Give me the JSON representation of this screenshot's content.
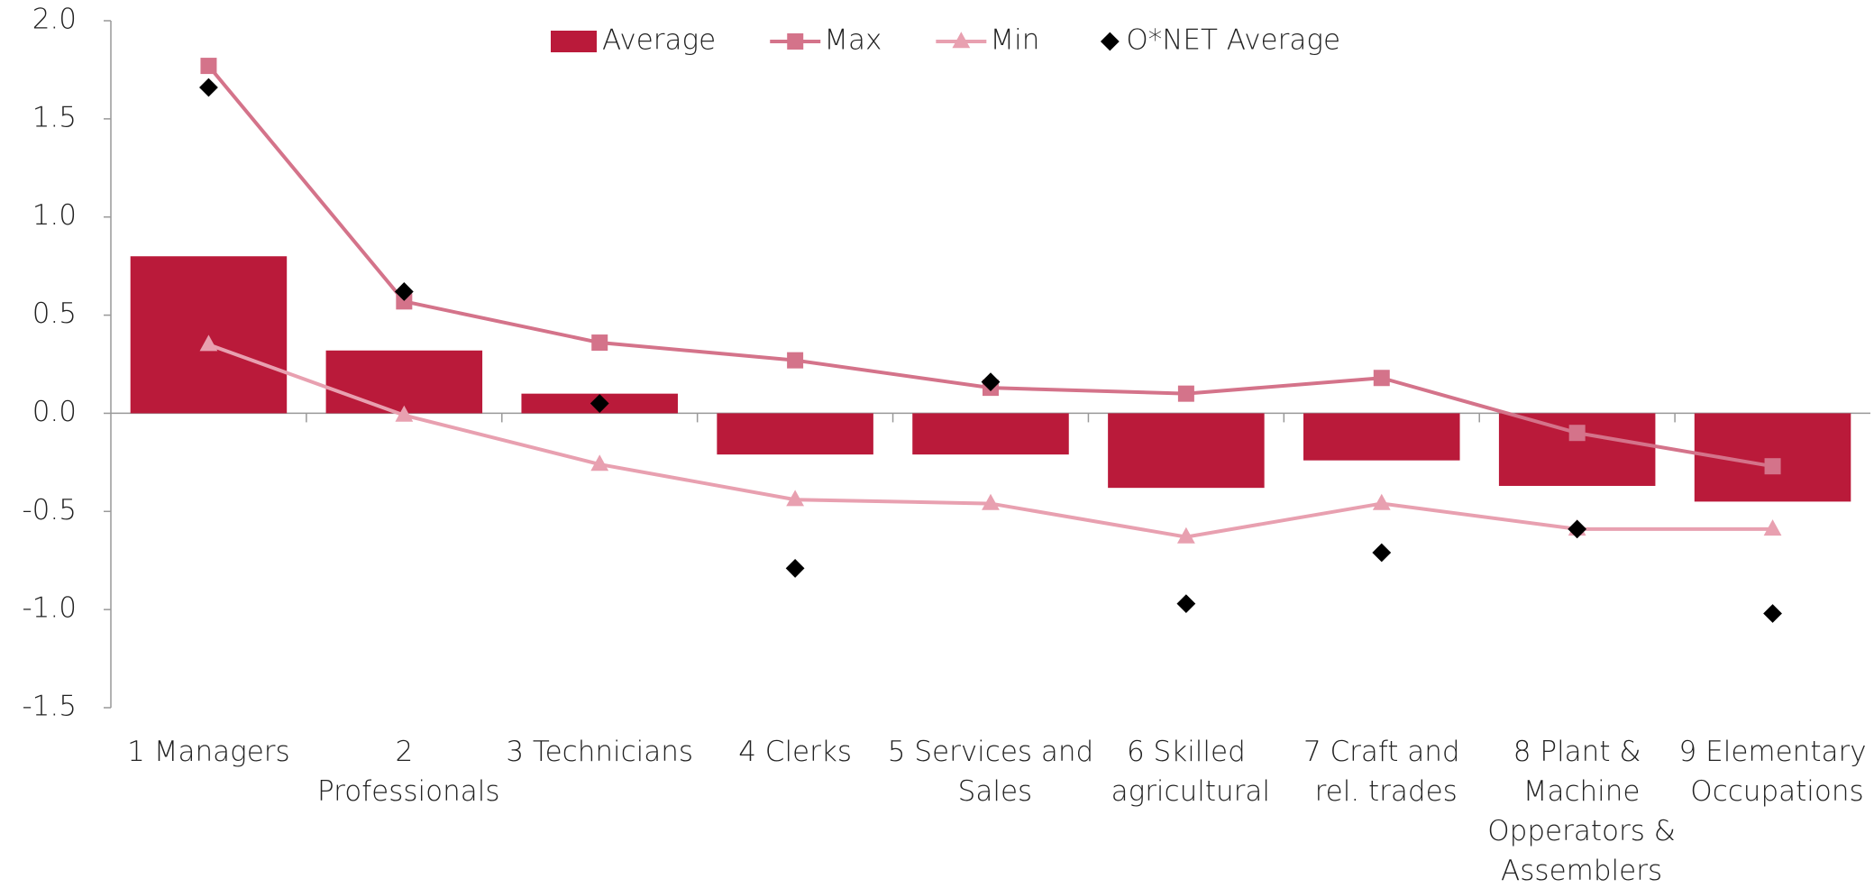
{
  "chart_data": {
    "type": "combo",
    "categories": [
      "1 Managers",
      "2 Professionals",
      "3 Technicians",
      "4 Clerks",
      "5 Services and Sales",
      "6 Skilled agricultural",
      "7 Craft and rel. trades",
      "8 Plant & Machine Opperators & Assemblers",
      "9 Elementary Occupations"
    ],
    "series": [
      {
        "name": "Average",
        "type": "bar",
        "color": "#ba1a3a",
        "values": [
          0.8,
          0.32,
          0.1,
          -0.21,
          -0.21,
          -0.38,
          -0.24,
          -0.37,
          -0.45
        ]
      },
      {
        "name": "Max",
        "type": "line",
        "marker": "square",
        "color": "#d4738a",
        "values": [
          1.77,
          0.57,
          0.36,
          0.27,
          0.13,
          0.1,
          0.18,
          -0.1,
          -0.27
        ]
      },
      {
        "name": "Min",
        "type": "line",
        "marker": "triangle",
        "color": "#e8a0b0",
        "values": [
          0.35,
          -0.01,
          -0.26,
          -0.44,
          -0.46,
          -0.63,
          -0.46,
          -0.59,
          -0.59
        ]
      },
      {
        "name": "O*NET Average",
        "type": "scatter",
        "marker": "diamond",
        "color": "#000000",
        "values": [
          1.66,
          0.62,
          0.05,
          -0.79,
          0.16,
          -0.97,
          -0.71,
          -0.59,
          -1.02
        ]
      }
    ],
    "ylim": [
      -1.5,
      2.0
    ],
    "yticks": [
      {
        "value": -1.5,
        "label": "-1.5"
      },
      {
        "value": -1.0,
        "label": "-1.0"
      },
      {
        "value": -0.5,
        "label": "-0.5"
      },
      {
        "value": 0,
        "label": "0.0"
      },
      {
        "value": 0.5,
        "label": "0.5"
      },
      {
        "value": 1.0,
        "label": "1.0"
      },
      {
        "value": 1.5,
        "label": "1.5"
      },
      {
        "value": 2.0,
        "label": "2.0"
      }
    ],
    "grid": false,
    "legend": "top"
  }
}
